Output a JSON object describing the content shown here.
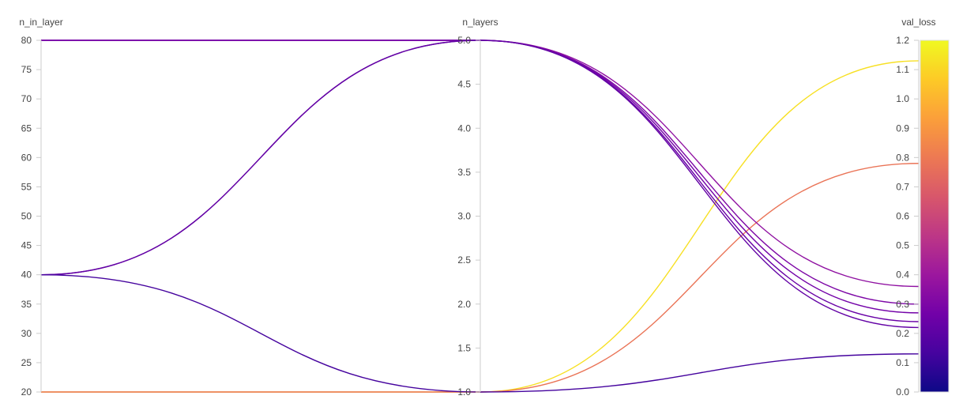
{
  "chart_data": {
    "type": "parallel_coordinates",
    "title": "",
    "axes": [
      {
        "key": "n_in_layer",
        "label": "n_in_layer",
        "range": [
          20,
          80
        ],
        "ticks": [
          20,
          25,
          30,
          35,
          40,
          45,
          50,
          55,
          60,
          65,
          70,
          75,
          80
        ],
        "tick_labels": [
          "20",
          "25",
          "30",
          "35",
          "40",
          "45",
          "50",
          "55",
          "60",
          "65",
          "70",
          "75",
          "80"
        ]
      },
      {
        "key": "n_layers",
        "label": "n_layers",
        "range": [
          1.0,
          5.0
        ],
        "ticks": [
          1.0,
          1.5,
          2.0,
          2.5,
          3.0,
          3.5,
          4.0,
          4.5,
          5.0
        ],
        "tick_labels": [
          "1.0",
          "1.5",
          "2.0",
          "2.5",
          "3.0",
          "3.5",
          "4.0",
          "4.5",
          "5.0"
        ]
      },
      {
        "key": "val_loss",
        "label": "val_loss",
        "range": [
          0.0,
          1.2
        ],
        "ticks": [
          0.0,
          0.1,
          0.2,
          0.3,
          0.4,
          0.5,
          0.6,
          0.7,
          0.8,
          0.9,
          1.0,
          1.1,
          1.2
        ],
        "tick_labels": [
          "0.0",
          "0.1",
          "0.2",
          "0.3",
          "0.4",
          "0.5",
          "0.6",
          "0.7",
          "0.8",
          "0.9",
          "1.0",
          "1.1",
          "1.2"
        ]
      }
    ],
    "colorscale": {
      "name": "Plasma",
      "stops": [
        "#0d0887",
        "#46039f",
        "#7201a8",
        "#9c179e",
        "#bd3786",
        "#d8576b",
        "#ed7953",
        "#fb9f3a",
        "#fdca26",
        "#f0f921"
      ],
      "range": [
        0.0,
        1.2
      ]
    },
    "lines": [
      {
        "n_in_layer": 80,
        "n_layers": 5.0,
        "val_loss": 0.36
      },
      {
        "n_in_layer": 80,
        "n_layers": 5.0,
        "val_loss": 0.3
      },
      {
        "n_in_layer": 80,
        "n_layers": 5.0,
        "val_loss": 0.27
      },
      {
        "n_in_layer": 40,
        "n_layers": 5.0,
        "val_loss": 0.24
      },
      {
        "n_in_layer": 40,
        "n_layers": 5.0,
        "val_loss": 0.22
      },
      {
        "n_in_layer": 40,
        "n_layers": 1.0,
        "val_loss": 0.13
      },
      {
        "n_in_layer": 20,
        "n_layers": 1.0,
        "val_loss": 0.78
      },
      {
        "n_in_layer": 20,
        "n_layers": 1.0,
        "val_loss": 1.13
      }
    ],
    "grid": false,
    "colorbar": "right"
  }
}
